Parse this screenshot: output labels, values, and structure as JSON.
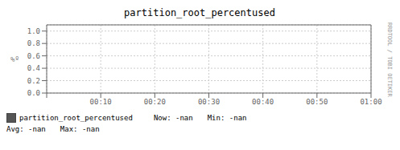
{
  "chart_data": {
    "type": "line",
    "title": "partition_root_percentused",
    "ylabel": "%º",
    "x": [],
    "series": [
      {
        "name": "partition_root_percentused",
        "color": "#555555",
        "values": []
      }
    ],
    "xlim": [
      0,
      3600
    ],
    "xticks": [
      {
        "value": 0,
        "label": null
      },
      {
        "value": 600,
        "label": "00:10"
      },
      {
        "value": 1200,
        "label": "00:20"
      },
      {
        "value": 1800,
        "label": "00:30"
      },
      {
        "value": 2400,
        "label": "00:40"
      },
      {
        "value": 3000,
        "label": "00:50"
      },
      {
        "value": 3600,
        "label": "01:00"
      }
    ],
    "ylim": [
      0.0,
      1.1
    ],
    "yticks": [
      {
        "value": 0.0,
        "label": "0.0"
      },
      0.2,
      0.4,
      0.6,
      0.8,
      {
        "value": 1.0,
        "label": "1.0"
      }
    ],
    "grid": true,
    "annotations": [
      "Now:",
      "-nan",
      "Min:",
      "-nan",
      "Avg:",
      "-nan",
      "Max:",
      "-nan",
      "RRDTOOL / TOBI OETIKER"
    ]
  }
}
